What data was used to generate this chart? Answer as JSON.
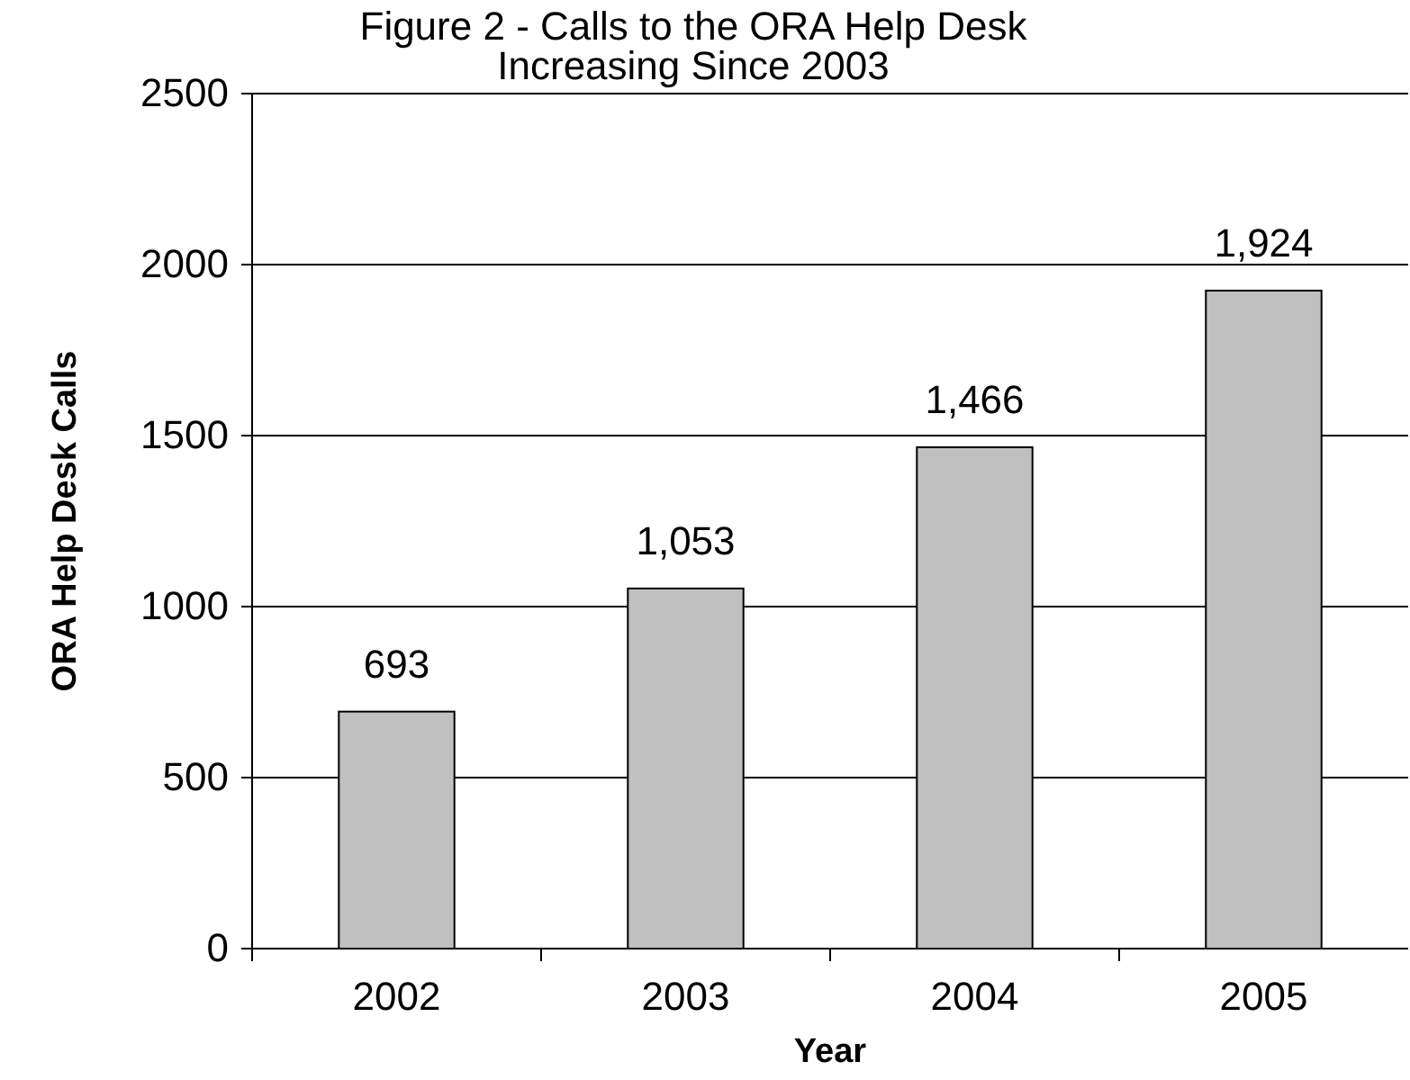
{
  "chart_data": {
    "type": "bar",
    "title": "Figure 2 - Calls to the ORA Help Desk\nIncreasing Since 2003",
    "xlabel": "Year",
    "ylabel": "ORA Help Desk Calls",
    "categories": [
      "2002",
      "2003",
      "2004",
      "2005"
    ],
    "values": [
      693,
      1053,
      1466,
      1924
    ],
    "color": "#c0c0c0",
    "value_labels": [
      "693",
      "1,053",
      "1,466",
      "1,924"
    ],
    "ylim": [
      0,
      2500
    ],
    "yticks": [
      0,
      500,
      1000,
      1500,
      2000,
      2500
    ],
    "grid": "y"
  }
}
